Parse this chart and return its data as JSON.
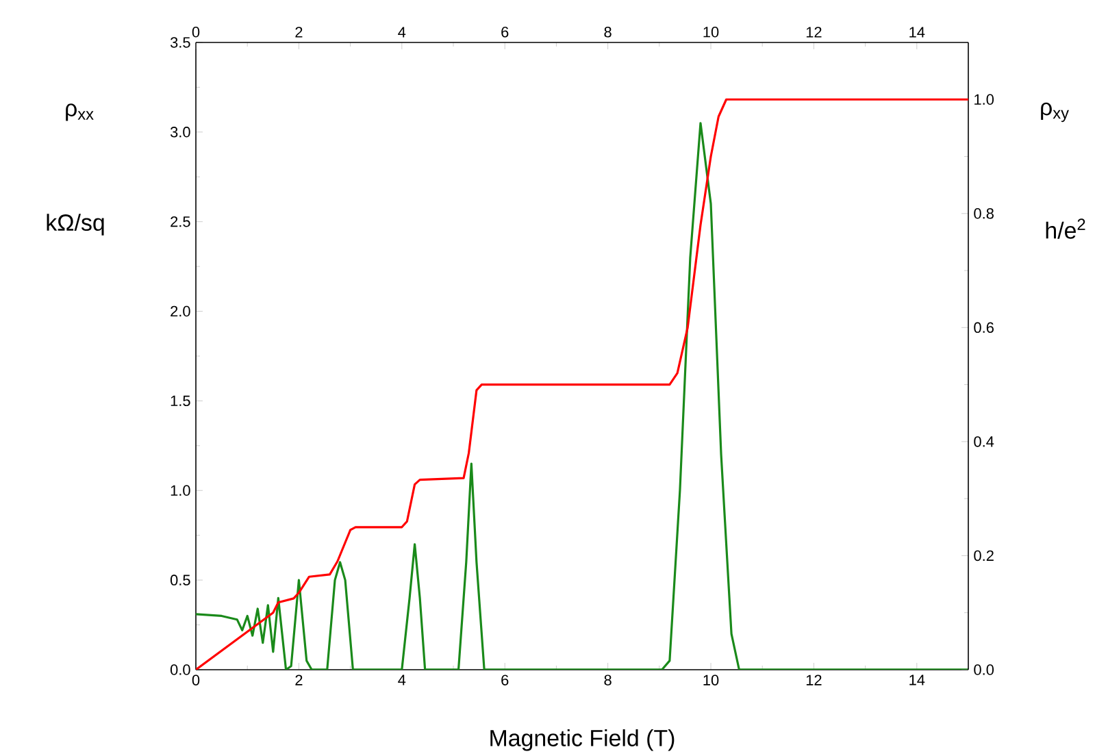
{
  "chart_data": {
    "type": "line",
    "xlabel": "Magnetic Field  (T)",
    "ylabel": "ρ$_{xx}$",
    "y2label": "ρ$_{xy}$",
    "annotations": [
      "kΩ/sq",
      "h/e$^{2}$"
    ],
    "xlim": [
      0,
      15
    ],
    "xticks": [
      0,
      2,
      4,
      6,
      8,
      10,
      12,
      14
    ],
    "x2lim": [
      0,
      15
    ],
    "x2ticks": [
      0,
      2,
      4,
      6,
      8,
      10,
      12,
      14
    ],
    "ylim": [
      0,
      3.5
    ],
    "yticks": [
      {
        "value": 0,
        "label": "0.0"
      },
      0.5,
      {
        "value": 1,
        "label": "1.0"
      },
      1.5,
      {
        "value": 2,
        "label": "2.0"
      },
      2.5,
      {
        "value": 3,
        "label": "3.0"
      },
      3.5
    ],
    "y2lim": [
      0,
      1.1
    ],
    "y2ticks": [
      {
        "value": 0,
        "label": "0.0"
      },
      0.2,
      0.4,
      0.6,
      0.8,
      {
        "value": 1,
        "label": "1.0"
      }
    ],
    "series": [
      {
        "color": "#1a8a1a",
        "x": [
          0,
          0.5,
          0.8,
          0.9,
          1.0,
          1.1,
          1.2,
          1.3,
          1.4,
          1.5,
          1.6,
          1.75,
          1.85,
          2.0,
          2.15,
          2.25,
          2.55,
          2.7,
          2.8,
          2.9,
          3.05,
          4.0,
          4.15,
          4.25,
          4.35,
          4.45,
          5.1,
          5.25,
          5.35,
          5.45,
          5.6,
          9.05,
          9.2,
          9.4,
          9.6,
          9.8,
          10.0,
          10.2,
          10.4,
          10.55,
          15
        ],
        "values": [
          0.31,
          0.3,
          0.28,
          0.22,
          0.3,
          0.19,
          0.34,
          0.15,
          0.36,
          0.1,
          0.4,
          0.0,
          0.02,
          0.5,
          0.05,
          0.0,
          0.0,
          0.5,
          0.6,
          0.5,
          0.0,
          0.0,
          0.4,
          0.7,
          0.4,
          0.0,
          0.0,
          0.6,
          1.15,
          0.6,
          0.0,
          0.0,
          0.05,
          1.0,
          2.3,
          3.05,
          2.6,
          1.2,
          0.2,
          0.0,
          0.0
        ]
      },
      {
        "color": "#ff0000",
        "axis": "y2",
        "x": [
          0,
          1.5,
          1.6,
          1.9,
          2.0,
          2.2,
          2.6,
          2.75,
          3.0,
          3.1,
          4.0,
          4.1,
          4.25,
          4.35,
          5.2,
          5.3,
          5.45,
          5.55,
          9.2,
          9.35,
          9.55,
          9.8,
          10.0,
          10.15,
          10.3,
          15
        ],
        "values": [
          0,
          0.1,
          0.118,
          0.125,
          0.135,
          0.163,
          0.167,
          0.19,
          0.245,
          0.25,
          0.25,
          0.26,
          0.325,
          0.333,
          0.336,
          0.38,
          0.49,
          0.5,
          0.5,
          0.52,
          0.6,
          0.78,
          0.9,
          0.97,
          1.0,
          1.0
        ]
      }
    ]
  }
}
